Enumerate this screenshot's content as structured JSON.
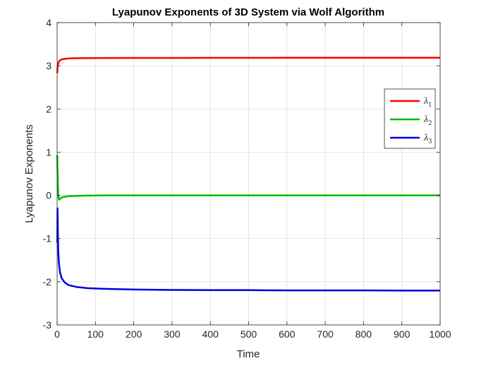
{
  "chart_data": {
    "type": "line",
    "title": "Lyapunov Exponents of 3D System via Wolf Algorithm",
    "xlabel": "Time",
    "ylabel": "Lyapunov Exponents",
    "xlim": [
      0,
      1000
    ],
    "ylim": [
      -3,
      4
    ],
    "xticks": [
      0,
      100,
      200,
      300,
      400,
      500,
      600,
      700,
      800,
      900,
      1000
    ],
    "yticks": [
      -3,
      -2,
      -1,
      0,
      1,
      2,
      3,
      4
    ],
    "grid": true,
    "legend_position": "right",
    "series": [
      {
        "name": "λ1",
        "symbol": "λ",
        "subscript": "1",
        "color": "#ff0000",
        "x": [
          0.3,
          1,
          2,
          3,
          5,
          8,
          12,
          20,
          30,
          50,
          80,
          120,
          200,
          300,
          400,
          500,
          600,
          700,
          800,
          900,
          1000
        ],
        "y": [
          2.83,
          2.95,
          3.02,
          3.06,
          3.1,
          3.13,
          3.15,
          3.16,
          3.17,
          3.175,
          3.178,
          3.18,
          3.182,
          3.183,
          3.184,
          3.184,
          3.185,
          3.185,
          3.185,
          3.185,
          3.185
        ]
      },
      {
        "name": "λ2",
        "symbol": "λ",
        "subscript": "2",
        "color": "#00bb00",
        "x": [
          0.3,
          1,
          2,
          3,
          5,
          8,
          12,
          20,
          30,
          50,
          80,
          120,
          200,
          300,
          400,
          500,
          600,
          700,
          800,
          900,
          1000
        ],
        "y": [
          0.93,
          0.6,
          0.25,
          0.0,
          -0.1,
          -0.08,
          -0.05,
          -0.03,
          -0.02,
          -0.01,
          -0.005,
          0.0,
          0.0,
          0.0,
          0.0,
          0.0,
          0.0,
          0.0,
          0.0,
          0.0,
          0.0
        ]
      },
      {
        "name": "λ3",
        "symbol": "λ",
        "subscript": "3",
        "color": "#0000e6",
        "x": [
          0.3,
          1,
          2,
          3,
          5,
          8,
          12,
          20,
          30,
          50,
          80,
          120,
          200,
          300,
          400,
          500,
          600,
          700,
          800,
          900,
          1000
        ],
        "y": [
          -1.1,
          -0.3,
          -0.9,
          -1.3,
          -1.6,
          -1.8,
          -1.92,
          -2.02,
          -2.08,
          -2.12,
          -2.15,
          -2.165,
          -2.18,
          -2.19,
          -2.195,
          -2.195,
          -2.2,
          -2.2,
          -2.2,
          -2.205,
          -2.205
        ]
      }
    ]
  }
}
